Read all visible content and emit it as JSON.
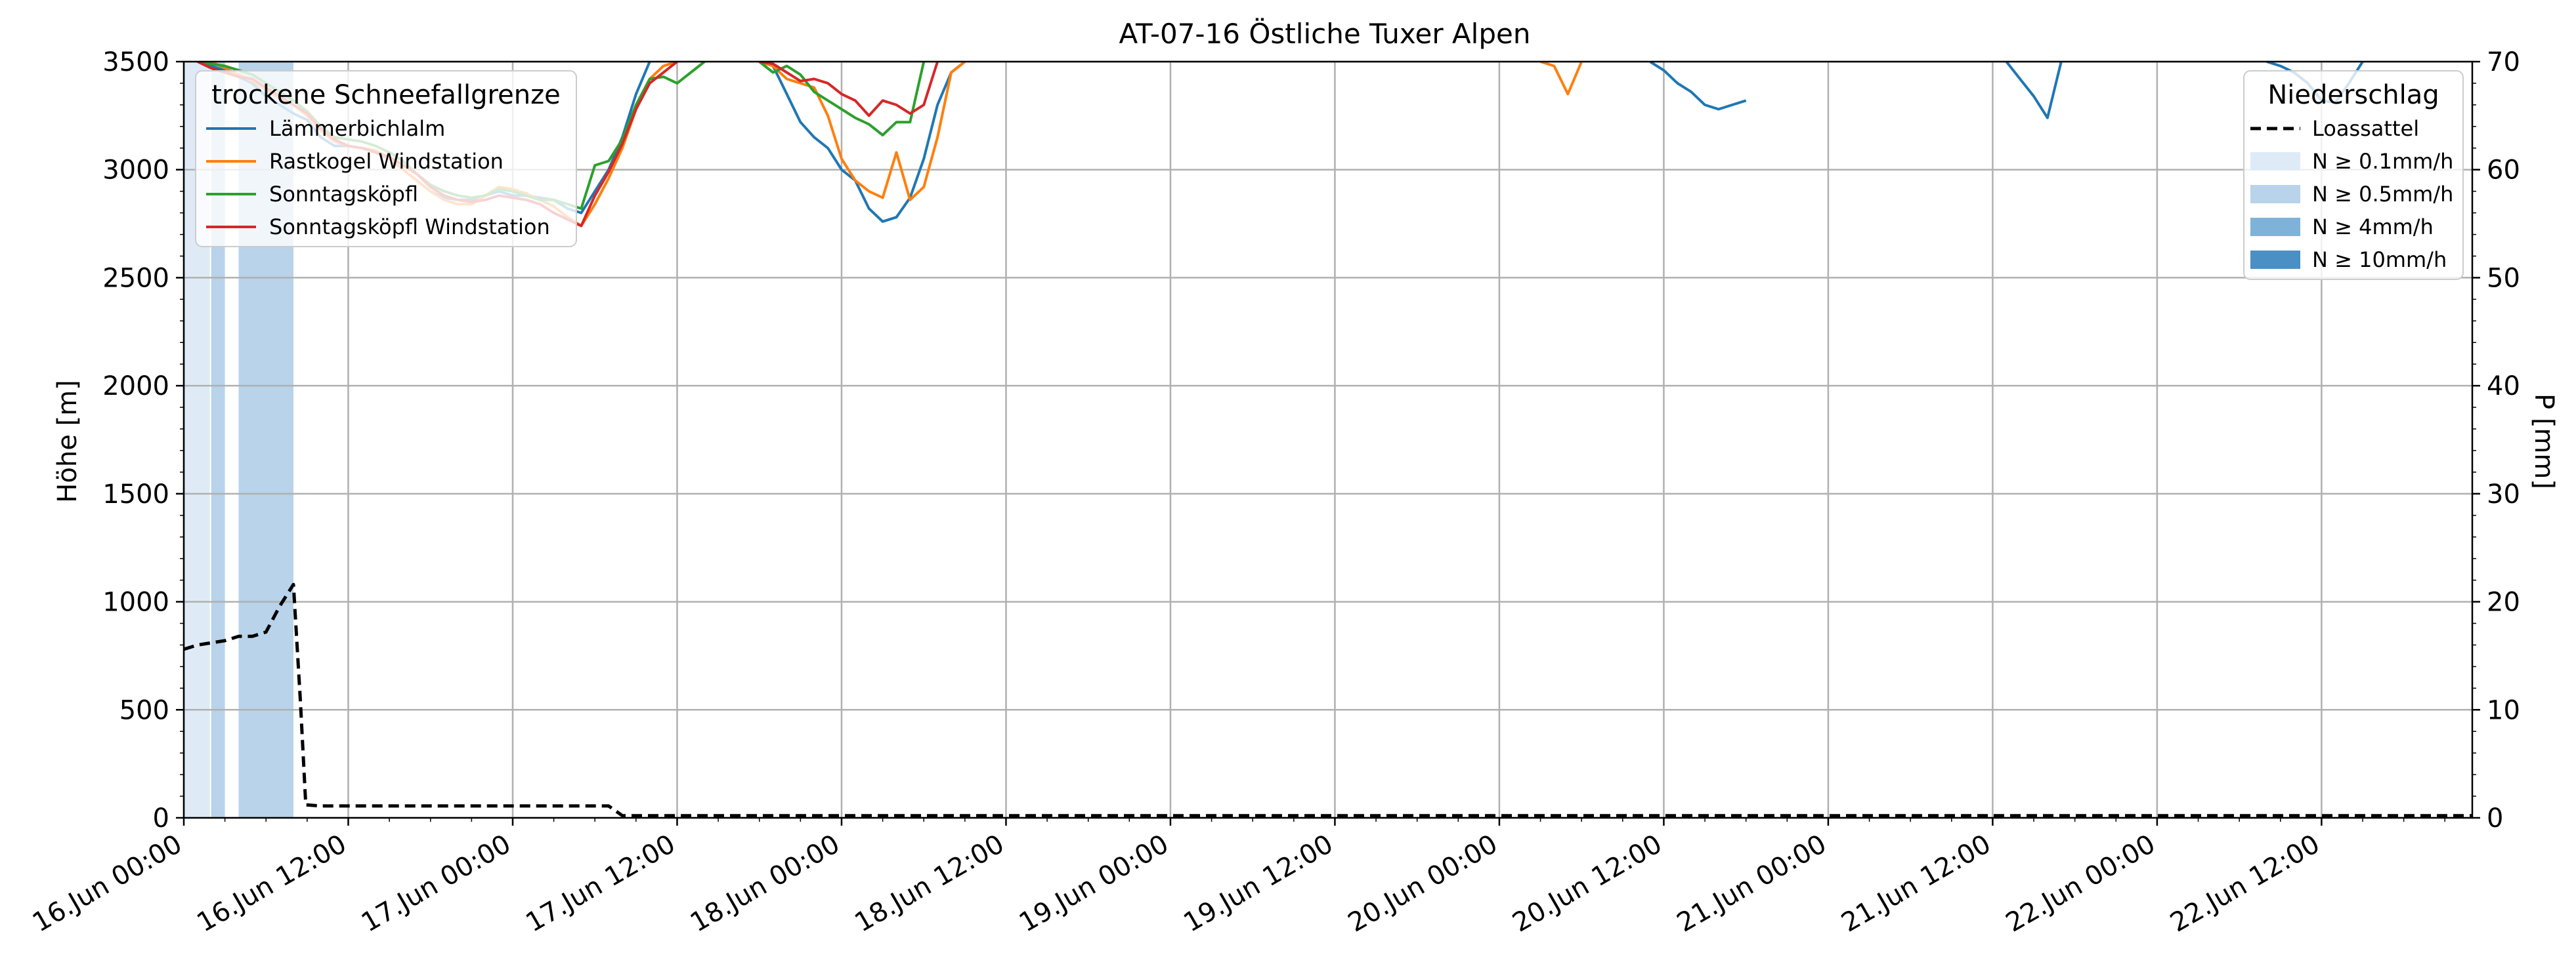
{
  "chart_data": {
    "type": "line",
    "title": "AT-07-16 Östliche Tuxer Alpen",
    "ylabel_left": "Höhe [m]",
    "ylabel_right": "P [mm]",
    "ylim_left": [
      0,
      3500
    ],
    "ylim_right": [
      0,
      70
    ],
    "xlim_hours": [
      0,
      167
    ],
    "y_ticks_left": [
      "0",
      "500",
      "1000",
      "1500",
      "2000",
      "2500",
      "3000",
      "3500"
    ],
    "y_ticks_right": [
      "0",
      "10",
      "20",
      "30",
      "40",
      "50",
      "60",
      "70"
    ],
    "x_ticks": [
      "16.Jun 00:00",
      "16.Jun 12:00",
      "17.Jun 00:00",
      "17.Jun 12:00",
      "18.Jun 00:00",
      "18.Jun 12:00",
      "19.Jun 00:00",
      "19.Jun 12:00",
      "20.Jun 00:00",
      "20.Jun 12:00",
      "21.Jun 00:00",
      "21.Jun 12:00",
      "22.Jun 00:00",
      "22.Jun 12:00"
    ],
    "grid": true,
    "legend_left": {
      "title": "trockene Schneefallgrenze",
      "placement": "upper-left",
      "items": [
        "Lämmerbichlalm",
        "Rastkogel Windstation",
        "Sonntagsköpfl",
        "Sonntagsköpfl Windstation"
      ]
    },
    "legend_right": {
      "title": "Niederschlag",
      "placement": "upper-right",
      "items": [
        "Loassattel",
        "N ≥ 0.1mm/h",
        "N ≥ 0.5mm/h",
        "N ≥ 4mm/h",
        "N ≥ 10mm/h"
      ]
    },
    "colors": {
      "Lämmerbichlalm": "#1f77b4",
      "Rastkogel Windstation": "#ff7f0e",
      "Sonntagsköpfl": "#2ca02c",
      "Sonntagsköpfl Windstation": "#d62728",
      "Loassattel": "#000000",
      "N ≥ 0.1mm/h": "#deebf7",
      "N ≥ 0.5mm/h": "#b8d3ea",
      "N ≥ 4mm/h": "#7fb2d9",
      "N ≥ 10mm/h": "#4a90c4",
      "grid": "#b0b0b0"
    },
    "precip_bands": [
      {
        "from": 0,
        "to": 1.9,
        "level": "N ≥ 0.1mm/h"
      },
      {
        "from": 2,
        "to": 3,
        "level": "N ≥ 0.5mm/h"
      },
      {
        "from": 4,
        "to": 8,
        "level": "N ≥ 0.5mm/h"
      }
    ],
    "series": [
      {
        "name": "Lämmerbichlalm",
        "points": [
          [
            1.5,
            3500
          ],
          [
            2,
            3480
          ],
          [
            3,
            3460
          ],
          [
            4,
            3430
          ],
          [
            5,
            3400
          ],
          [
            6,
            3340
          ],
          [
            7,
            3300
          ],
          [
            8,
            3260
          ],
          [
            9,
            3230
          ],
          [
            10,
            3150
          ],
          [
            11,
            3110
          ],
          [
            12,
            3110
          ],
          [
            13,
            3100
          ],
          [
            14,
            3080
          ],
          [
            15,
            3050
          ],
          [
            16,
            3000
          ],
          [
            17,
            2950
          ],
          [
            18,
            2900
          ],
          [
            19,
            2870
          ],
          [
            20,
            2860
          ],
          [
            21,
            2860
          ],
          [
            22,
            2880
          ],
          [
            23,
            2900
          ],
          [
            24,
            2880
          ],
          [
            25,
            2880
          ],
          [
            26,
            2870
          ],
          [
            27,
            2860
          ],
          [
            28,
            2820
          ],
          [
            29,
            2800
          ],
          [
            30,
            2900
          ],
          [
            31,
            3000
          ],
          [
            32,
            3150
          ],
          [
            33,
            3350
          ],
          [
            34,
            3500
          ],
          [
            null,
            null
          ],
          [
            42,
            3500
          ],
          [
            43,
            3480
          ],
          [
            44,
            3350
          ],
          [
            45,
            3220
          ],
          [
            46,
            3150
          ],
          [
            47,
            3100
          ],
          [
            48,
            3000
          ],
          [
            49,
            2950
          ],
          [
            50,
            2820
          ],
          [
            51,
            2760
          ],
          [
            52,
            2780
          ],
          [
            53,
            2870
          ],
          [
            54,
            3050
          ],
          [
            55,
            3300
          ],
          [
            56,
            3450
          ],
          [
            57,
            3500
          ],
          [
            null,
            null
          ],
          [
            107,
            3500
          ],
          [
            108,
            3460
          ],
          [
            109,
            3400
          ],
          [
            110,
            3360
          ],
          [
            111,
            3300
          ],
          [
            112,
            3280
          ],
          [
            113,
            3300
          ],
          [
            114,
            3320
          ],
          [
            null,
            null
          ],
          [
            133,
            3500
          ],
          [
            134,
            3420
          ],
          [
            135,
            3340
          ],
          [
            136,
            3240
          ],
          [
            137,
            3500
          ],
          [
            null,
            null
          ],
          [
            152,
            3500
          ],
          [
            153,
            3480
          ],
          [
            154,
            3450
          ],
          [
            155,
            3400
          ],
          [
            156,
            3320
          ],
          [
            157,
            3310
          ],
          [
            158,
            3400
          ],
          [
            159,
            3500
          ]
        ]
      },
      {
        "name": "Rastkogel Windstation",
        "points": [
          [
            2,
            3500
          ],
          [
            3,
            3470
          ],
          [
            4,
            3440
          ],
          [
            5,
            3410
          ],
          [
            6,
            3370
          ],
          [
            7,
            3330
          ],
          [
            8,
            3300
          ],
          [
            9,
            3250
          ],
          [
            10,
            3180
          ],
          [
            11,
            3130
          ],
          [
            12,
            3110
          ],
          [
            13,
            3100
          ],
          [
            14,
            3090
          ],
          [
            15,
            3050
          ],
          [
            16,
            3000
          ],
          [
            17,
            2950
          ],
          [
            18,
            2900
          ],
          [
            19,
            2860
          ],
          [
            20,
            2840
          ],
          [
            21,
            2840
          ],
          [
            22,
            2880
          ],
          [
            23,
            2920
          ],
          [
            24,
            2910
          ],
          [
            25,
            2890
          ],
          [
            26,
            2860
          ],
          [
            27,
            2830
          ],
          [
            28,
            2780
          ],
          [
            29,
            2740
          ],
          [
            30,
            2840
          ],
          [
            31,
            2960
          ],
          [
            32,
            3100
          ],
          [
            33,
            3280
          ],
          [
            34,
            3420
          ],
          [
            35,
            3480
          ],
          [
            36,
            3500
          ],
          [
            null,
            null
          ],
          [
            42,
            3500
          ],
          [
            43,
            3480
          ],
          [
            44,
            3420
          ],
          [
            45,
            3400
          ],
          [
            46,
            3380
          ],
          [
            47,
            3250
          ],
          [
            48,
            3050
          ],
          [
            49,
            2950
          ],
          [
            50,
            2900
          ],
          [
            51,
            2870
          ],
          [
            52,
            3080
          ],
          [
            53,
            2860
          ],
          [
            54,
            2920
          ],
          [
            55,
            3150
          ],
          [
            56,
            3450
          ],
          [
            57,
            3500
          ],
          [
            null,
            null
          ],
          [
            99,
            3500
          ],
          [
            100,
            3480
          ],
          [
            101,
            3350
          ],
          [
            102,
            3500
          ]
        ]
      },
      {
        "name": "Sonntagsköpfl",
        "points": [
          [
            1,
            3500
          ],
          [
            2,
            3490
          ],
          [
            3,
            3480
          ],
          [
            4,
            3460
          ],
          [
            5,
            3440
          ],
          [
            6,
            3400
          ],
          [
            7,
            3360
          ],
          [
            8,
            3320
          ],
          [
            9,
            3270
          ],
          [
            10,
            3200
          ],
          [
            11,
            3150
          ],
          [
            12,
            3140
          ],
          [
            13,
            3130
          ],
          [
            14,
            3110
          ],
          [
            15,
            3080
          ],
          [
            16,
            3040
          ],
          [
            17,
            2980
          ],
          [
            18,
            2930
          ],
          [
            19,
            2900
          ],
          [
            20,
            2880
          ],
          [
            21,
            2870
          ],
          [
            22,
            2880
          ],
          [
            23,
            2910
          ],
          [
            24,
            2900
          ],
          [
            25,
            2880
          ],
          [
            26,
            2860
          ],
          [
            27,
            2860
          ],
          [
            28,
            2840
          ],
          [
            29,
            2820
          ],
          [
            30,
            3020
          ],
          [
            31,
            3040
          ],
          [
            32,
            3140
          ],
          [
            33,
            3300
          ],
          [
            34,
            3420
          ],
          [
            35,
            3430
          ],
          [
            36,
            3400
          ],
          [
            37,
            3450
          ],
          [
            38,
            3500
          ],
          [
            null,
            null
          ],
          [
            42,
            3500
          ],
          [
            43,
            3450
          ],
          [
            44,
            3480
          ],
          [
            45,
            3440
          ],
          [
            46,
            3360
          ],
          [
            47,
            3320
          ],
          [
            48,
            3280
          ],
          [
            49,
            3240
          ],
          [
            50,
            3210
          ],
          [
            51,
            3160
          ],
          [
            52,
            3220
          ],
          [
            53,
            3220
          ],
          [
            54,
            3500
          ]
        ]
      },
      {
        "name": "Sonntagsköpfl Windstation",
        "points": [
          [
            1,
            3500
          ],
          [
            2,
            3470
          ],
          [
            3,
            3450
          ],
          [
            4,
            3430
          ],
          [
            5,
            3420
          ],
          [
            6,
            3380
          ],
          [
            7,
            3340
          ],
          [
            8,
            3300
          ],
          [
            9,
            3260
          ],
          [
            10,
            3190
          ],
          [
            11,
            3140
          ],
          [
            12,
            3110
          ],
          [
            13,
            3100
          ],
          [
            14,
            3080
          ],
          [
            15,
            3060
          ],
          [
            16,
            3020
          ],
          [
            17,
            2980
          ],
          [
            18,
            2920
          ],
          [
            19,
            2880
          ],
          [
            20,
            2860
          ],
          [
            21,
            2850
          ],
          [
            22,
            2860
          ],
          [
            23,
            2880
          ],
          [
            24,
            2870
          ],
          [
            25,
            2860
          ],
          [
            26,
            2840
          ],
          [
            27,
            2800
          ],
          [
            28,
            2770
          ],
          [
            29,
            2740
          ],
          [
            30,
            2880
          ],
          [
            31,
            2990
          ],
          [
            32,
            3120
          ],
          [
            33,
            3280
          ],
          [
            34,
            3400
          ],
          [
            35,
            3450
          ],
          [
            36,
            3500
          ],
          [
            null,
            null
          ],
          [
            42,
            3500
          ],
          [
            43,
            3490
          ],
          [
            44,
            3450
          ],
          [
            45,
            3410
          ],
          [
            46,
            3420
          ],
          [
            47,
            3400
          ],
          [
            48,
            3350
          ],
          [
            49,
            3320
          ],
          [
            50,
            3250
          ],
          [
            51,
            3320
          ],
          [
            52,
            3300
          ],
          [
            53,
            3260
          ],
          [
            54,
            3300
          ],
          [
            55,
            3500
          ]
        ]
      },
      {
        "name": "Loassattel",
        "points": [
          [
            0,
            780
          ],
          [
            1,
            800
          ],
          [
            2,
            810
          ],
          [
            3,
            820
          ],
          [
            4,
            840
          ],
          [
            5,
            840
          ],
          [
            6,
            860
          ],
          [
            7,
            980
          ],
          [
            8,
            1080
          ],
          [
            8.5,
            550
          ],
          [
            8.9,
            60
          ],
          [
            10,
            55
          ],
          [
            31,
            55
          ],
          [
            32,
            10
          ],
          [
            167,
            10
          ]
        ]
      }
    ]
  }
}
